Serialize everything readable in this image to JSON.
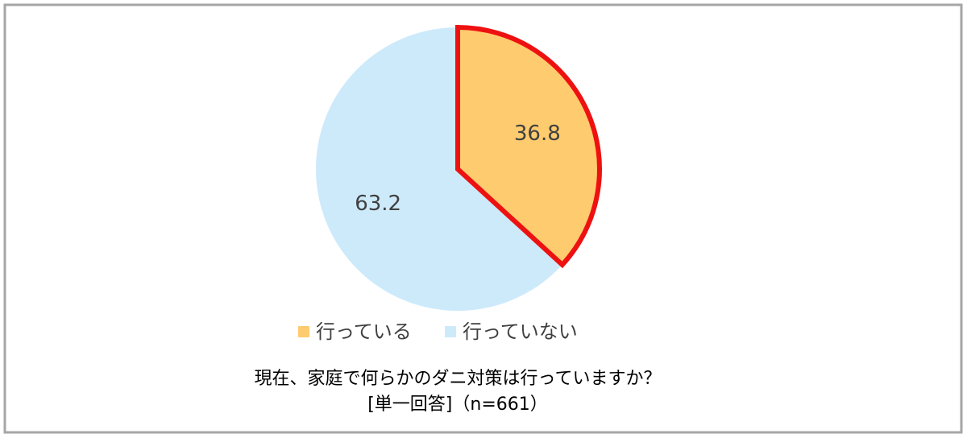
{
  "chart_data": {
    "type": "pie",
    "title": "現在、家庭で何らかのダニ対策は行っていますか？",
    "subtitle": "[単一回答]（n=661）",
    "categories": [
      "行っている",
      "行っていない"
    ],
    "values": [
      36.8,
      63.2
    ],
    "colors": [
      "#fecb6e",
      "#cdeafb"
    ],
    "edgecolors": [
      "#ee1111",
      null
    ],
    "legend": "bottom"
  }
}
